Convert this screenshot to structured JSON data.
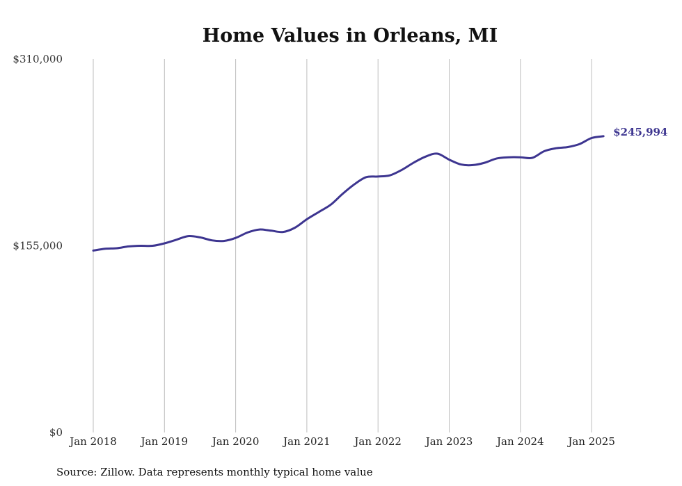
{
  "chart_data": {
    "type": "line",
    "title": "Home Values in Orleans, MI",
    "source": "Source: Zillow. Data represents monthly typical home value",
    "xlabel": "",
    "ylabel": "",
    "ylim": [
      0,
      310000
    ],
    "y_ticks": [
      {
        "value": 0,
        "label": "$0"
      },
      {
        "value": 155000,
        "label": "$155,000"
      },
      {
        "value": 310000,
        "label": "$310,000"
      }
    ],
    "x_ticks": [
      {
        "value": "2018-01",
        "label": "Jan 2018"
      },
      {
        "value": "2019-01",
        "label": "Jan 2019"
      },
      {
        "value": "2020-01",
        "label": "Jan 2020"
      },
      {
        "value": "2021-01",
        "label": "Jan 2021"
      },
      {
        "value": "2022-01",
        "label": "Jan 2022"
      },
      {
        "value": "2023-01",
        "label": "Jan 2023"
      },
      {
        "value": "2024-01",
        "label": "Jan 2024"
      },
      {
        "value": "2025-01",
        "label": "Jan 2025"
      }
    ],
    "grid": "vertical",
    "line_color": "#3d3590",
    "end_label": "$245,994",
    "series": [
      {
        "x": [
          "2018-01",
          "2018-03",
          "2018-05",
          "2018-07",
          "2018-09",
          "2018-11",
          "2019-01",
          "2019-03",
          "2019-05",
          "2019-07",
          "2019-09",
          "2019-11",
          "2020-01",
          "2020-03",
          "2020-05",
          "2020-07",
          "2020-09",
          "2020-11",
          "2021-01",
          "2021-03",
          "2021-05",
          "2021-07",
          "2021-09",
          "2021-11",
          "2022-01",
          "2022-03",
          "2022-05",
          "2022-07",
          "2022-09",
          "2022-11",
          "2023-01",
          "2023-03",
          "2023-05",
          "2023-07",
          "2023-09",
          "2023-11",
          "2024-01",
          "2024-03",
          "2024-05",
          "2024-07",
          "2024-09",
          "2024-11",
          "2025-01",
          "2025-03"
        ],
        "values": [
          151000,
          152500,
          153000,
          154500,
          155000,
          155000,
          157000,
          160000,
          163000,
          162000,
          159500,
          159000,
          161500,
          166000,
          168500,
          167500,
          166500,
          170000,
          177000,
          183000,
          189000,
          198000,
          206000,
          212000,
          212500,
          213500,
          218000,
          224000,
          229000,
          231500,
          226500,
          222500,
          222000,
          224000,
          227500,
          228500,
          228500,
          228000,
          233500,
          236000,
          237000,
          239500,
          244500,
          245994
        ]
      }
    ]
  }
}
